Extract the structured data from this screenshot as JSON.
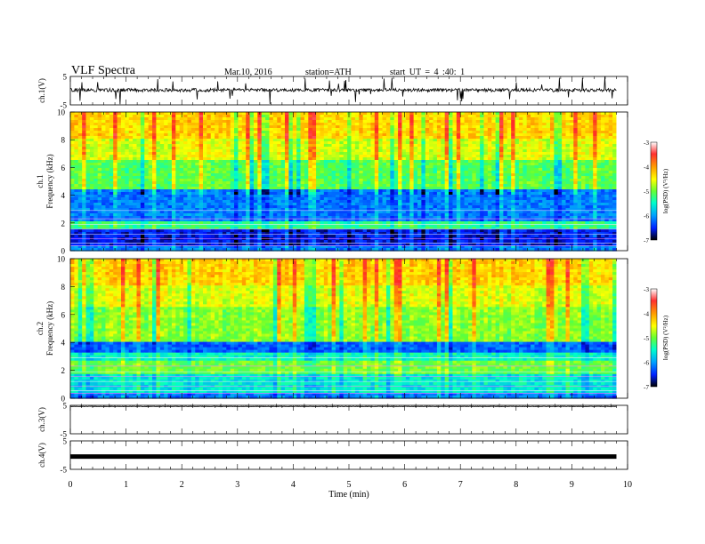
{
  "header": {
    "title": "VLF  Spectra",
    "date": "Mar.10, 2016",
    "station": "station=ATH",
    "start": "start  UT  =   4  :40: 1"
  },
  "chart_data": [
    {
      "type": "line",
      "panel": "ch1-waveform",
      "ylabel": "ch.1(V)",
      "ylim": [
        -5,
        5
      ],
      "yticks": [
        "5",
        "-5"
      ],
      "baseline": 0.2,
      "amplitude_typical": 0.6,
      "spikes_max": 4.5
    },
    {
      "type": "heatmap",
      "panel": "ch1-spectrogram",
      "ylabel_top": "ch.1",
      "ylabel": "Frequency  (kHz)",
      "ylim": [
        0,
        10
      ],
      "yticks": [
        "0",
        "2",
        "4",
        "6",
        "8",
        "10"
      ],
      "description_bands": [
        {
          "from_khz": 0,
          "to_khz": 1.5,
          "level": "low-with-lines"
        },
        {
          "from_khz": 1.5,
          "to_khz": 2.2,
          "level": "mid"
        },
        {
          "from_khz": 2.2,
          "to_khz": 4.5,
          "level": "low"
        },
        {
          "from_khz": 4.5,
          "to_khz": 7,
          "level": "mid"
        },
        {
          "from_khz": 7,
          "to_khz": 10,
          "level": "high"
        }
      ],
      "colorbar": {
        "label": "log(PSD) (V²/Hz)",
        "range": [
          -7,
          -3
        ],
        "ticks": [
          "-3",
          "-4",
          "-5",
          "-6",
          "-7"
        ]
      }
    },
    {
      "type": "heatmap",
      "panel": "ch2-spectrogram",
      "ylabel_top": "ch.2",
      "ylabel": "Frequency  (kHz)",
      "ylim": [
        0,
        10
      ],
      "yticks": [
        "0",
        "2",
        "4",
        "6",
        "8",
        "10"
      ],
      "colorbar": {
        "label": "log(PSD) (V²/Hz)",
        "range": [
          -7,
          -3
        ],
        "ticks": [
          "-3",
          "-4",
          "-5",
          "-6",
          "-7"
        ]
      }
    },
    {
      "type": "line",
      "panel": "ch3-waveform",
      "ylabel": "ch.3(V)",
      "ylim": [
        -5,
        5
      ],
      "yticks": [
        "5",
        "-5"
      ],
      "baseline": 4.6
    },
    {
      "type": "line",
      "panel": "ch4-waveform",
      "ylabel": "ch.4(V)",
      "ylim": [
        -5,
        5
      ],
      "yticks": [
        "5",
        "-5"
      ],
      "baseline": -0.5
    }
  ],
  "xaxis": {
    "label": "Time  (min)",
    "ticks": [
      "0",
      "1",
      "2",
      "3",
      "4",
      "5",
      "6",
      "7",
      "8",
      "9",
      "10"
    ],
    "xlim": [
      0,
      10
    ],
    "data_end": 9.8
  },
  "colors": {
    "cbar": [
      "#ffffff",
      "#ff3030",
      "#ff9a00",
      "#ffff00",
      "#66ff33",
      "#00ffcc",
      "#00a0ff",
      "#0020ff",
      "#000000"
    ]
  }
}
